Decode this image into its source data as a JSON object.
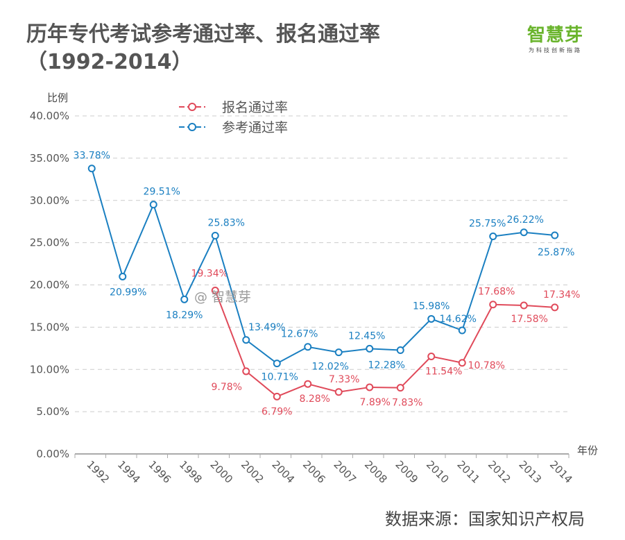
{
  "title_line1": "历年专代考试参考通过率、报名通过率",
  "title_line2": "（1992-2014）",
  "logo": {
    "name": "智慧芽",
    "tagline": "为科技创新指路"
  },
  "watermark": "@ 智慧芽",
  "source": "数据来源：国家知识产权局",
  "chart_data": {
    "type": "line",
    "ylabel": "比例",
    "xlabel": "年份",
    "ylim": [
      0,
      40
    ],
    "yticks": [
      "0.00%",
      "5.00%",
      "10.00%",
      "15.00%",
      "20.00%",
      "25.00%",
      "30.00%",
      "35.00%",
      "40.00%"
    ],
    "grid": true,
    "legend_placement": "top-left",
    "categories": [
      "1992",
      "1994",
      "1996",
      "1998",
      "2000",
      "2002",
      "2004",
      "2006",
      "2007",
      "2008",
      "2009",
      "2010",
      "2011",
      "2012",
      "2013",
      "2014"
    ],
    "series": [
      {
        "name": "报名通过率",
        "color": "#e04a5a",
        "values": [
          null,
          null,
          null,
          null,
          19.34,
          9.78,
          6.79,
          8.28,
          7.33,
          7.89,
          7.83,
          11.54,
          10.78,
          17.68,
          17.58,
          17.34
        ],
        "labels": [
          null,
          null,
          null,
          null,
          "19.34%",
          "9.78%",
          "6.79%",
          "8.28%",
          "7.33%",
          "7.89%",
          "7.83%",
          "11.54%",
          "10.78%",
          "17.68%",
          "17.58%",
          "17.34%"
        ]
      },
      {
        "name": "参考通过率",
        "color": "#1a7fc1",
        "values": [
          33.78,
          20.99,
          29.51,
          18.29,
          25.83,
          13.49,
          10.71,
          12.67,
          12.02,
          12.45,
          12.28,
          15.98,
          14.62,
          25.75,
          26.22,
          25.87
        ],
        "labels": [
          "33.78%",
          "20.99%",
          "29.51%",
          "18.29%",
          "25.83%",
          "13.49%",
          "10.71%",
          "12.67%",
          "12.02%",
          "12.45%",
          "12.28%",
          "15.98%",
          "14.62%",
          "25.75%",
          "26.22%",
          "25.87%"
        ]
      }
    ]
  }
}
